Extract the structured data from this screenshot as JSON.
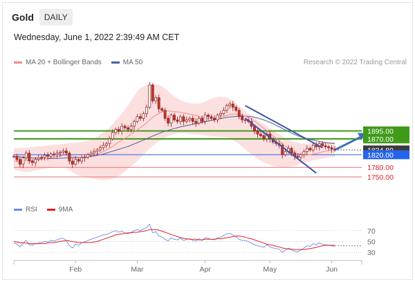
{
  "header": {
    "title": "Gold",
    "timeframe": "DAILY"
  },
  "datetime": "Wednesday, June 1, 2022 2:39:49 AM CET",
  "legend": {
    "ma20": "MA 20 + Bollinger Bands",
    "ma50": "MA 50",
    "rsi": "RSI",
    "ma9": "9MA"
  },
  "credit": "Research © 2022 Trading Central",
  "colors": {
    "ma20": "#f28b8b",
    "band": "#fcdcdc",
    "ma50": "#4a5f9c",
    "support_resistance_green": "#3f9a1a",
    "pivot_blue": "#2563eb",
    "red_level": "#ee6f6f",
    "last_price_bg": "#3a3a3a",
    "rsi_line": "#6a8de6",
    "ma9_line": "#e22020",
    "channel": "#3b55a6",
    "arrow": "#3b6fb7",
    "bull": "#ffffff",
    "bear": "#c0392b"
  },
  "chart_data": {
    "type": "candlestick",
    "x_labels": [
      "Feb",
      "Mar",
      "Apr",
      "May",
      "Jun"
    ],
    "ylim": [
      1715,
      2075
    ],
    "levels": [
      {
        "value": 1895.0,
        "label": "1895.00",
        "kind": "resistance"
      },
      {
        "value": 1870.0,
        "label": "1870.00",
        "kind": "resistance"
      },
      {
        "value": 1834.89,
        "label": "1834.89",
        "kind": "last"
      },
      {
        "value": 1820.0,
        "label": "1820.00",
        "kind": "pivot"
      },
      {
        "value": 1780.0,
        "label": "1780.00",
        "kind": "support"
      },
      {
        "value": 1750.0,
        "label": "1750.00",
        "kind": "support"
      }
    ],
    "closes": [
      1815,
      1805,
      1790,
      1810,
      1825,
      1800,
      1795,
      1805,
      1810,
      1812,
      1818,
      1815,
      1822,
      1820,
      1825,
      1828,
      1832,
      1825,
      1800,
      1790,
      1805,
      1800,
      1810,
      1812,
      1820,
      1825,
      1830,
      1835,
      1842,
      1850,
      1855,
      1870,
      1890,
      1900,
      1895,
      1910,
      1905,
      1900,
      1910,
      1925,
      1940,
      1935,
      1950,
      1970,
      2040,
      1990,
      2000,
      1965,
      1960,
      1935,
      1920,
      1945,
      1930,
      1925,
      1940,
      1925,
      1930,
      1935,
      1925,
      1920,
      1935,
      1925,
      1945,
      1940,
      1935,
      1930,
      1945,
      1950,
      1960,
      1975,
      1980,
      1970,
      1960,
      1940,
      1930,
      1930,
      1925,
      1910,
      1895,
      1885,
      1880,
      1870,
      1885,
      1870,
      1860,
      1855,
      1850,
      1820,
      1830,
      1840,
      1825,
      1815,
      1812,
      1820,
      1830,
      1840,
      1835,
      1850,
      1845,
      1855,
      1848,
      1845,
      1842,
      1838,
      1835
    ],
    "ma20": [
      1800,
      1800,
      1801,
      1801,
      1802,
      1802,
      1803,
      1804,
      1805,
      1806,
      1808,
      1809,
      1811,
      1812,
      1814,
      1816,
      1818,
      1818,
      1816,
      1814,
      1813,
      1812,
      1812,
      1813,
      1815,
      1817,
      1819,
      1822,
      1826,
      1830,
      1835,
      1840,
      1846,
      1853,
      1860,
      1866,
      1872,
      1878,
      1885,
      1892,
      1898,
      1905,
      1912,
      1920,
      1930,
      1938,
      1945,
      1950,
      1955,
      1958,
      1958,
      1957,
      1956,
      1955,
      1954,
      1952,
      1950,
      1948,
      1946,
      1944,
      1941,
      1938,
      1936,
      1935,
      1935,
      1936,
      1937,
      1939,
      1941,
      1944,
      1947,
      1948,
      1948,
      1947,
      1945,
      1942,
      1938,
      1933,
      1926,
      1919,
      1911,
      1903,
      1896,
      1888,
      1880,
      1872,
      1864,
      1855,
      1847,
      1840,
      1833,
      1827,
      1823,
      1820,
      1819,
      1819,
      1820,
      1822,
      1824,
      1826,
      1829,
      1831,
      1833,
      1835,
      1836
    ],
    "bb_upper": [
      1840,
      1840,
      1841,
      1841,
      1842,
      1843,
      1844,
      1845,
      1846,
      1847,
      1848,
      1849,
      1850,
      1851,
      1852,
      1853,
      1854,
      1855,
      1856,
      1857,
      1858,
      1859,
      1860,
      1862,
      1865,
      1868,
      1872,
      1877,
      1883,
      1890,
      1898,
      1907,
      1917,
      1927,
      1938,
      1950,
      1962,
      1975,
      1990,
      2005,
      2020,
      2030,
      2035,
      2040,
      2042,
      2043,
      2042,
      2040,
      2035,
      2028,
      2020,
      2012,
      2004,
      1998,
      1992,
      1988,
      1985,
      1983,
      1982,
      1981,
      1982,
      1984,
      1988,
      1992,
      1996,
      2000,
      2002,
      2003,
      2002,
      2000,
      1996,
      1990,
      1982,
      1974,
      1966,
      1958,
      1950,
      1942,
      1935,
      1928,
      1922,
      1916,
      1910,
      1903,
      1896,
      1890,
      1884,
      1878,
      1873,
      1868,
      1864,
      1861,
      1858,
      1856,
      1855,
      1855,
      1856,
      1857,
      1858,
      1859,
      1860,
      1860,
      1861,
      1861,
      1862
    ],
    "bb_lower": [
      1775,
      1770,
      1768,
      1766,
      1765,
      1766,
      1768,
      1770,
      1772,
      1774,
      1776,
      1778,
      1780,
      1781,
      1782,
      1782,
      1781,
      1778,
      1772,
      1765,
      1760,
      1755,
      1752,
      1750,
      1748,
      1746,
      1744,
      1742,
      1741,
      1740,
      1741,
      1742,
      1744,
      1748,
      1753,
      1760,
      1768,
      1776,
      1784,
      1792,
      1800,
      1810,
      1820,
      1830,
      1840,
      1848,
      1855,
      1862,
      1868,
      1874,
      1878,
      1882,
      1885,
      1887,
      1888,
      1888,
      1887,
      1886,
      1885,
      1884,
      1883,
      1882,
      1881,
      1880,
      1879,
      1878,
      1877,
      1876,
      1875,
      1873,
      1870,
      1866,
      1860,
      1853,
      1845,
      1837,
      1829,
      1821,
      1814,
      1807,
      1801,
      1796,
      1792,
      1788,
      1785,
      1783,
      1782,
      1781,
      1781,
      1782,
      1783,
      1785,
      1788,
      1791,
      1794,
      1797,
      1800,
      1802,
      1804,
      1806,
      1808,
      1810,
      1812,
      1813,
      1814
    ],
    "ma50": [
      1815,
      1814,
      1813,
      1812,
      1812,
      1811,
      1810,
      1809,
      1809,
      1808,
      1808,
      1808,
      1808,
      1808,
      1808,
      1809,
      1809,
      1810,
      1810,
      1810,
      1811,
      1811,
      1812,
      1813,
      1814,
      1815,
      1816,
      1818,
      1820,
      1822,
      1825,
      1828,
      1831,
      1834,
      1837,
      1840,
      1843,
      1846,
      1850,
      1854,
      1858,
      1862,
      1866,
      1870,
      1875,
      1879,
      1883,
      1887,
      1891,
      1894,
      1897,
      1900,
      1903,
      1905,
      1908,
      1910,
      1912,
      1914,
      1916,
      1918,
      1920,
      1922,
      1924,
      1926,
      1928,
      1930,
      1932,
      1934,
      1936,
      1938,
      1939,
      1940,
      1941,
      1942,
      1942,
      1942,
      1941,
      1940,
      1938,
      1936,
      1933,
      1930,
      1926,
      1922,
      1918,
      1913,
      1908,
      1903,
      1898,
      1893,
      1888,
      1884,
      1880,
      1876,
      1873,
      1870,
      1868,
      1866,
      1864,
      1862,
      1860,
      1858,
      1857,
      1856,
      1855
    ],
    "rsi": {
      "ylim": [
        20,
        85
      ],
      "ticks": [
        70,
        50,
        30
      ],
      "rsi_values": [
        48,
        45,
        40,
        47,
        52,
        44,
        43,
        46,
        47,
        48,
        50,
        49,
        52,
        51,
        53,
        55,
        56,
        52,
        42,
        38,
        45,
        43,
        48,
        49,
        52,
        54,
        56,
        58,
        60,
        62,
        63,
        65,
        68,
        70,
        67,
        69,
        66,
        64,
        67,
        70,
        72,
        70,
        73,
        76,
        82,
        66,
        68,
        60,
        58,
        54,
        51,
        57,
        54,
        53,
        56,
        52,
        54,
        55,
        52,
        51,
        55,
        52,
        57,
        56,
        54,
        53,
        57,
        58,
        61,
        64,
        65,
        62,
        59,
        54,
        52,
        52,
        50,
        47,
        44,
        42,
        41,
        39,
        44,
        40,
        38,
        37,
        36,
        30,
        34,
        38,
        34,
        32,
        31,
        34,
        38,
        42,
        41,
        46,
        44,
        47,
        45,
        44,
        43,
        42,
        41
      ],
      "ma9_values": [
        50,
        49,
        48,
        47,
        47,
        46,
        46,
        46,
        46,
        46,
        46,
        47,
        48,
        48,
        49,
        50,
        51,
        52,
        51,
        50,
        49,
        48,
        48,
        48,
        48,
        48,
        49,
        50,
        52,
        54,
        56,
        58,
        60,
        62,
        63,
        64,
        65,
        66,
        66,
        67,
        67,
        68,
        69,
        70,
        72,
        72,
        72,
        71,
        69,
        67,
        65,
        63,
        61,
        59,
        57,
        56,
        55,
        54,
        54,
        54,
        53,
        53,
        54,
        54,
        54,
        54,
        55,
        55,
        56,
        57,
        58,
        59,
        60,
        60,
        59,
        58,
        56,
        55,
        53,
        51,
        49,
        47,
        45,
        44,
        43,
        41,
        40,
        38,
        37,
        36,
        36,
        35,
        35,
        35,
        35,
        36,
        37,
        38,
        39,
        41,
        42,
        43,
        43,
        43,
        43
      ]
    },
    "channel": [
      {
        "upper_start_index": 75,
        "upper_start_value": 1975,
        "upper_end_index": 100,
        "upper_end_value": 1842
      },
      {
        "lower_start_index": 75,
        "lower_start_value": 1935,
        "lower_end_index": 98,
        "lower_end_value": 1762
      }
    ],
    "arrow": {
      "from_index": 104,
      "from_value": 1835,
      "to_index": 114,
      "to_value": 1888
    }
  }
}
